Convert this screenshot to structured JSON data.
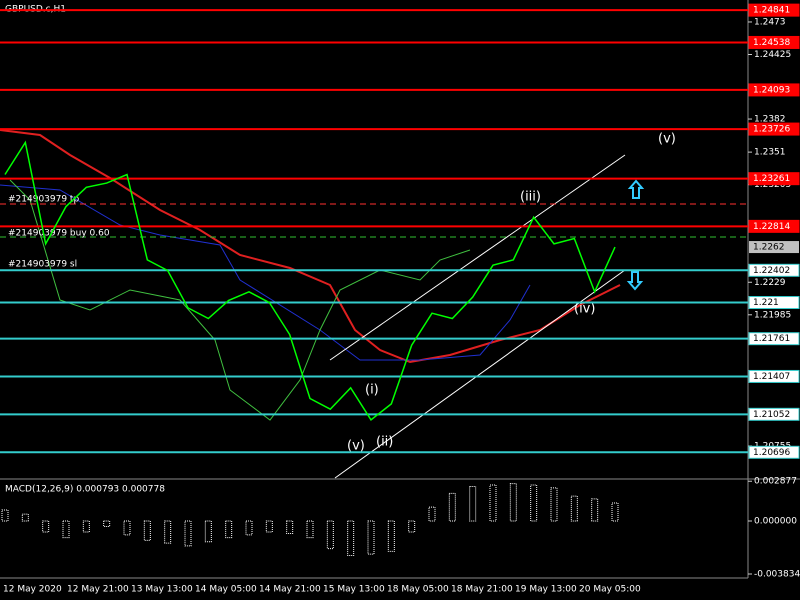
{
  "chart_data": {
    "type": "line",
    "title": "GBPUSD.c,H1",
    "ylim": [
      1.20455,
      1.24936
    ],
    "yticks": [
      1.2473,
      1.24425,
      1.2382,
      1.2351,
      1.23205,
      1.2229,
      1.21985,
      1.20755
    ],
    "levels": [
      {
        "value": 1.24841,
        "color": "#ff0000"
      },
      {
        "value": 1.24538,
        "color": "#ff0000"
      },
      {
        "value": 1.24093,
        "color": "#ff0000"
      },
      {
        "value": 1.23726,
        "color": "#ff0000"
      },
      {
        "value": 1.23261,
        "color": "#ff0000"
      },
      {
        "value": 1.22814,
        "color": "#ff0000"
      },
      {
        "value": 1.22402,
        "color": "#33cccc"
      },
      {
        "value": 1.221,
        "color": "#33cccc"
      },
      {
        "value": 1.21761,
        "color": "#33cccc"
      },
      {
        "value": 1.21407,
        "color": "#33cccc"
      },
      {
        "value": 1.21052,
        "color": "#33cccc"
      },
      {
        "value": 1.20696,
        "color": "#33cccc"
      }
    ],
    "current_price": 1.2262,
    "series": [
      {
        "name": "GBPUSD.c",
        "color": "#00ff00",
        "values": [
          1.233,
          1.236,
          1.2265,
          1.23,
          1.2318,
          1.2322,
          1.233,
          1.225,
          1.224,
          1.2205,
          1.2195,
          1.2212,
          1.222,
          1.221,
          1.218,
          1.212,
          1.211,
          1.213,
          1.21,
          1.2115,
          1.217,
          1.22,
          1.2195,
          1.2215,
          1.2245,
          1.225,
          1.229,
          1.2265,
          1.227,
          1.222,
          1.2262
        ]
      }
    ],
    "x_labels": [
      "12 May 2020",
      "12 May 21:00",
      "13 May 13:00",
      "14 May 05:00",
      "14 May 21:00",
      "15 May 13:00",
      "18 May 05:00",
      "18 May 21:00",
      "19 May 13:00",
      "20 May 05:00"
    ],
    "order_labels": [
      "#214903979 tp",
      "#214903979 buy 0.60",
      "#214903979 sl"
    ],
    "wave_labels": [
      "(v)",
      "(iii)",
      "(iv)",
      "(i)",
      "(v)",
      "(ii)"
    ],
    "macd": {
      "title": "MACD(12,26,9) 0.000793 0.000778",
      "ylim": [
        -0.004123,
        0.003038
      ],
      "yticks": [
        0.002877,
        {
          "value": 0,
          "label": "0.000000"
        },
        -0.003834
      ],
      "color": "#ffffff",
      "values": [
        0.0008,
        0.0005,
        -0.0008,
        -0.0012,
        -0.0008,
        -0.0004,
        -0.001,
        -0.0014,
        -0.0016,
        -0.0018,
        -0.0015,
        -0.0012,
        -0.001,
        -0.0008,
        -0.0009,
        -0.0012,
        -0.002,
        -0.0025,
        -0.0024,
        -0.0022,
        -0.0008,
        0.001,
        0.002,
        0.0025,
        0.0026,
        0.0027,
        0.0026,
        0.0024,
        0.0018,
        0.0016,
        0.0013
      ]
    }
  }
}
